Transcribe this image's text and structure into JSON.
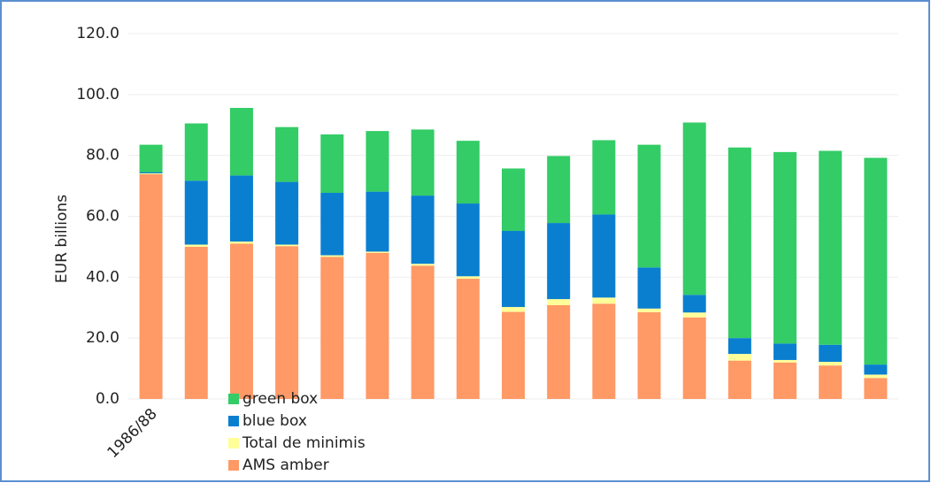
{
  "chart_data": {
    "type": "stacked-bar",
    "ylabel": "EUR billions",
    "categories": [
      "1986/88",
      null,
      null,
      null,
      null,
      null,
      null,
      null,
      null,
      null,
      null,
      null,
      null,
      null,
      null,
      null,
      null
    ],
    "series": [
      {
        "name": "AMS amber",
        "color": "#ff9966",
        "values": [
          73.8,
          50,
          51,
          50.2,
          46.7,
          48,
          43.8,
          39.5,
          28.6,
          30.8,
          31.3,
          28.5,
          26.8,
          12.6,
          12,
          11,
          6.9
        ]
      },
      {
        "name": "Total de minimis",
        "color": "#ffff99",
        "values": [
          0.3,
          0.7,
          0.7,
          0.5,
          0.5,
          0.4,
          0.6,
          0.8,
          1.6,
          2,
          2,
          1.2,
          1.6,
          2.2,
          0.8,
          1.2,
          1.1
        ]
      },
      {
        "name": "blue box",
        "color": "#0a7fd0",
        "values": [
          0.4,
          21,
          21.7,
          20.6,
          20.5,
          19.7,
          22.4,
          23.9,
          25,
          25,
          27.3,
          13.5,
          5.8,
          5.2,
          5.4,
          5.6,
          3.3
        ]
      },
      {
        "name": "green box",
        "color": "#33cc66",
        "values": [
          9,
          18.8,
          22.2,
          18,
          19.2,
          19.9,
          21.7,
          20.6,
          20.5,
          22,
          24.4,
          40.3,
          56.6,
          62.6,
          62.9,
          63.7,
          67.9
        ]
      }
    ],
    "ylim": [
      0,
      120
    ],
    "yticks": [
      {
        "value": 0,
        "label": "0.0"
      },
      {
        "value": 20,
        "label": "20.0"
      },
      {
        "value": 40,
        "label": "40.0"
      },
      {
        "value": 60,
        "label": "60.0"
      },
      {
        "value": 80,
        "label": "80.0"
      },
      {
        "value": 100,
        "label": "100.0"
      },
      {
        "value": 120,
        "label": "120.0"
      }
    ],
    "grid": true
  }
}
